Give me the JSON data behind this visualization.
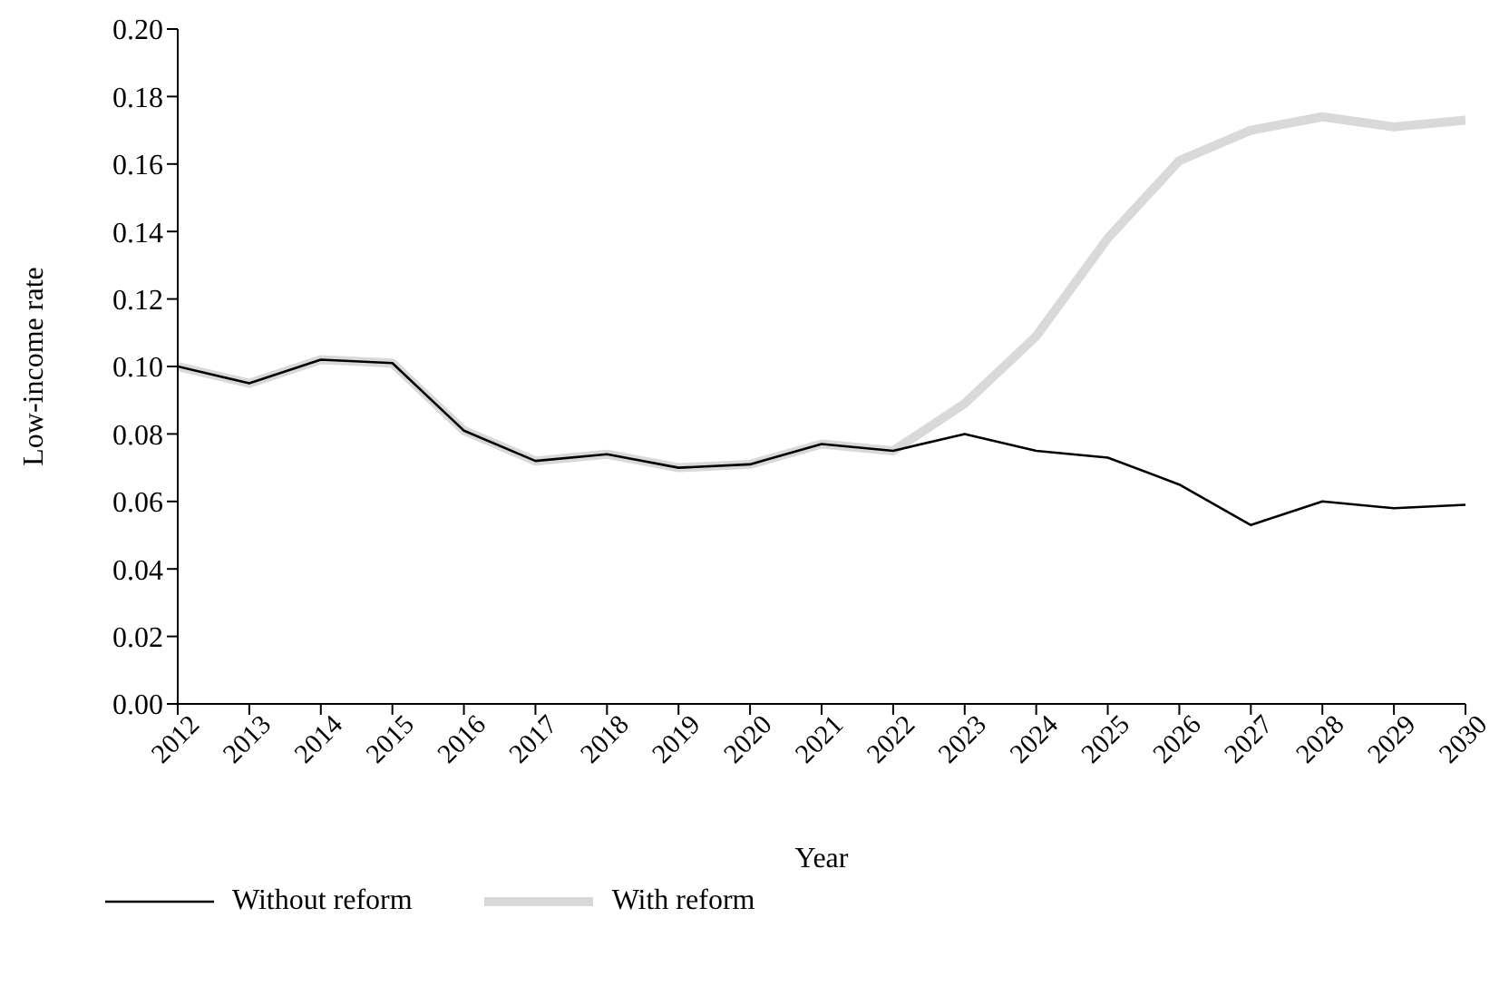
{
  "chart_data": {
    "type": "line",
    "xlabel": "Year",
    "ylabel": "Low-income rate",
    "categories": [
      "2012",
      "2013",
      "2014",
      "2015",
      "2016",
      "2017",
      "2018",
      "2019",
      "2020",
      "2021",
      "2022",
      "2023",
      "2024",
      "2025",
      "2026",
      "2027",
      "2028",
      "2029",
      "2030"
    ],
    "ylim": [
      0,
      0.2
    ],
    "yticks": [
      {
        "value": 0,
        "label": "0.00"
      },
      {
        "value": 0.02,
        "label": "0.02"
      },
      {
        "value": 0.04,
        "label": "0.04"
      },
      {
        "value": 0.06,
        "label": "0.06"
      },
      {
        "value": 0.08,
        "label": "0.08"
      },
      {
        "value": 0.1,
        "label": "0.10"
      },
      {
        "value": 0.12,
        "label": "0.12"
      },
      {
        "value": 0.14,
        "label": "0.14"
      },
      {
        "value": 0.16,
        "label": "0.16"
      },
      {
        "value": 0.18,
        "label": "0.18"
      },
      {
        "value": 0.2,
        "label": "0.20"
      }
    ],
    "series": [
      {
        "name": "Without reform",
        "color": "#000000",
        "values": [
          0.1,
          0.095,
          0.102,
          0.101,
          0.081,
          0.072,
          0.074,
          0.07,
          0.071,
          0.077,
          0.075,
          0.08,
          0.075,
          0.073,
          0.065,
          0.053,
          0.06,
          0.058,
          0.059
        ]
      },
      {
        "name": "With reform",
        "color": "#d9d9d9",
        "values": [
          0.1,
          0.095,
          0.102,
          0.101,
          0.081,
          0.072,
          0.074,
          0.07,
          0.071,
          0.077,
          0.075,
          0.089,
          0.109,
          0.138,
          0.161,
          0.17,
          0.174,
          0.171,
          0.173
        ]
      }
    ],
    "grid": false,
    "legend": "bottom",
    "marker": "none",
    "line_style": "solid"
  }
}
